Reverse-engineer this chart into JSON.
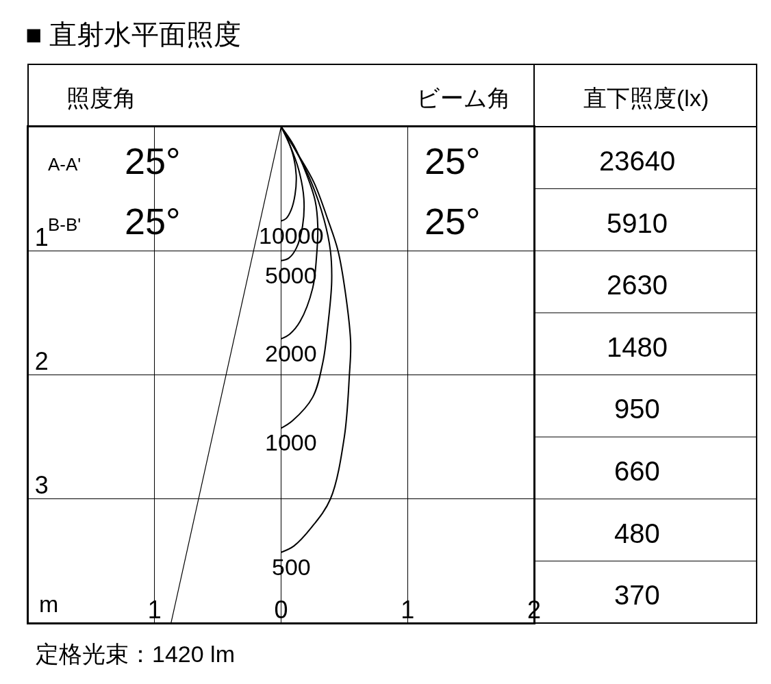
{
  "chart_data": {
    "type": "line",
    "title": "■ 直射水平面照度",
    "annotations": [
      "照度角",
      "ビーム角",
      "直下照度(lx)",
      "A-A'",
      "25°",
      "25°",
      "B-B'",
      "25°",
      "25°",
      "23640",
      "5910",
      "2630",
      "1480",
      "950",
      "660",
      "480",
      "370",
      "m",
      "定格光束：1420 lm"
    ],
    "series": [
      {
        "name": "10000",
        "color": "#000000",
        "x": [
          0,
          0.05,
          0.1,
          0.12,
          0.11,
          0.08,
          0.04,
          0
        ],
        "values": [
          0,
          0.1,
          0.25,
          0.4,
          0.55,
          0.67,
          0.74,
          0.76
        ]
      },
      {
        "name": "5000",
        "color": "#000000",
        "x": [
          0,
          0.07,
          0.14,
          0.18,
          0.17,
          0.12,
          0.06,
          0
        ],
        "values": [
          0,
          0.15,
          0.35,
          0.58,
          0.8,
          0.98,
          1.06,
          1.08
        ]
      },
      {
        "name": "2000",
        "color": "#000000",
        "x": [
          0,
          0.1,
          0.2,
          0.27,
          0.29,
          0.28,
          0.25,
          0.15,
          0.07,
          0
        ],
        "values": [
          0,
          0.15,
          0.38,
          0.6,
          0.8,
          1.05,
          1.3,
          1.57,
          1.67,
          1.71
        ]
      },
      {
        "name": "1000",
        "color": "#000000",
        "x": [
          0,
          0.12,
          0.24,
          0.34,
          0.39,
          0.4,
          0.37,
          0.33,
          0.25,
          0.09,
          0
        ],
        "values": [
          0,
          0.2,
          0.45,
          0.75,
          1.0,
          1.25,
          1.6,
          1.9,
          2.18,
          2.37,
          2.43
        ]
      },
      {
        "name": "500",
        "color": "#000000",
        "x": [
          0,
          0.12,
          0.26,
          0.37,
          0.45,
          0.51,
          0.55,
          0.54,
          0.5,
          0.39,
          0.24,
          0.1,
          0
        ],
        "values": [
          0,
          0.2,
          0.45,
          0.75,
          1.0,
          1.35,
          1.74,
          2.0,
          2.5,
          3.0,
          3.23,
          3.38,
          3.43
        ]
      },
      {
        "color": "#000000",
        "x": [
          0,
          -0.87
        ],
        "values": [
          0,
          4.0
        ]
      }
    ],
    "xlim": [
      -2,
      2
    ],
    "ylim": [
      4,
      0
    ],
    "xticks": [
      {
        "value": -1,
        "label": "1"
      },
      0,
      1,
      2
    ],
    "yticks": [
      1,
      2,
      3
    ],
    "grid": true
  }
}
